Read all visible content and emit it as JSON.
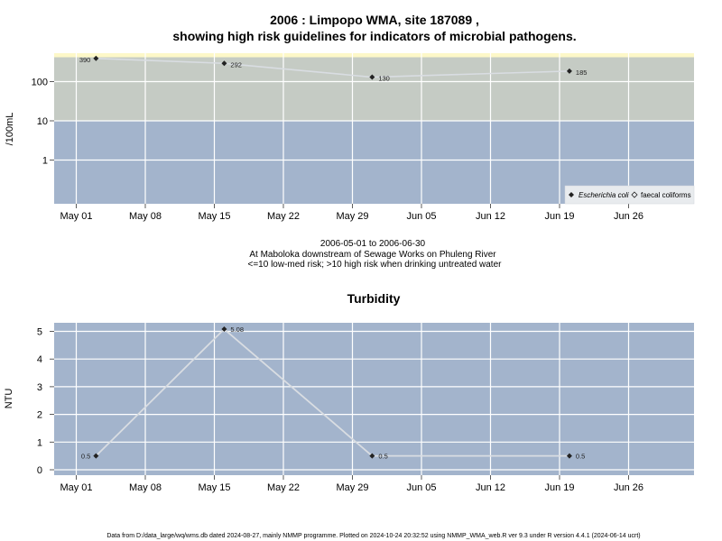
{
  "colors": {
    "low_band": "#a3b4cc",
    "high_band": "#c5cbc4",
    "top_band": "#fdf8c8",
    "line": "#d9dde2",
    "grid": "#ffffff",
    "point": "#222222"
  },
  "main_title": {
    "line1": "2006 : Limpopo WMA, site 187089 ,",
    "line2": "showing high risk guidelines for indicators of microbial pathogens."
  },
  "caption": {
    "date_range": "2006-05-01 to 2006-06-30",
    "location": "At Maboloka downstream of Sewage Works on Phuleng River",
    "risk_note": "<=10 low-med risk; >10 high risk when drinking untreated water"
  },
  "footer": "Data from D:/data_large/wq/wms.db dated 2024-08-27, mainly NMMP programme. Plotted on 2024-10-24 20:32:52 using NMMP_WMA_web.R ver 9.3 under R version 4.4.1 (2024-06-14 ucrt)",
  "x_ticks": [
    "May 01",
    "May 08",
    "May 15",
    "May 22",
    "May 29",
    "Jun 05",
    "Jun 12",
    "Jun 19",
    "Jun 26"
  ],
  "chart_data": [
    {
      "type": "line",
      "ylabel": "/100mL",
      "y_scale": "log",
      "yticks": [
        "1",
        "10",
        "100"
      ],
      "guideline_bands": [
        {
          "label": "low-med risk",
          "from": 0.1,
          "to": 10
        },
        {
          "label": "high risk",
          "from": 10,
          "to": 400
        }
      ],
      "legend": {
        "placement": "bottom-right",
        "entries": [
          "Escherichia coli",
          "faecal coliforms"
        ]
      },
      "series": [
        {
          "name": "Escherichia coli",
          "x": [
            "2006-05-03",
            "2006-05-16",
            "2006-05-31",
            "2006-06-20"
          ],
          "y": [
            390,
            292,
            130,
            185
          ],
          "labels": [
            "390",
            "292",
            "130",
            "185"
          ]
        }
      ]
    },
    {
      "type": "line",
      "title": "Turbidity",
      "ylabel": "NTU",
      "ylim": [
        0,
        5
      ],
      "yticks": [
        "0",
        "1",
        "2",
        "3",
        "4",
        "5"
      ],
      "series": [
        {
          "x": [
            "2006-05-03",
            "2006-05-16",
            "2006-05-31",
            "2006-06-20"
          ],
          "y": [
            0.5,
            5.08,
            0.5,
            0.5
          ],
          "labels": [
            "0.5",
            "5.08",
            "0.5",
            "0.5"
          ]
        }
      ]
    }
  ]
}
